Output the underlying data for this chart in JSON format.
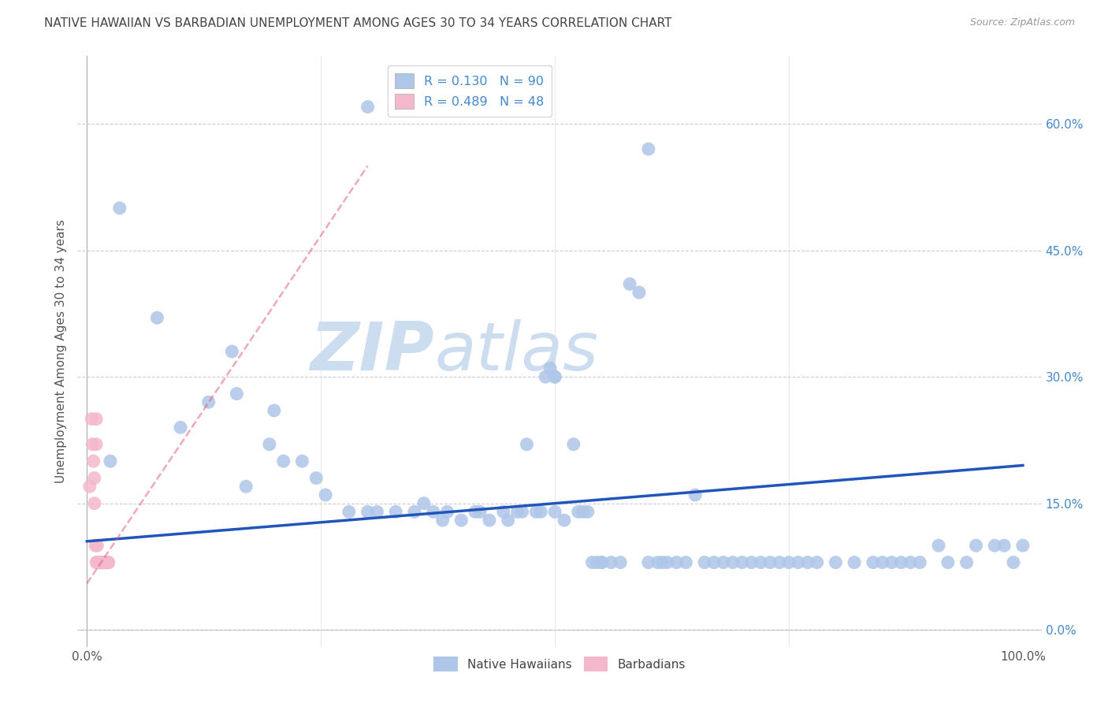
{
  "title": "NATIVE HAWAIIAN VS BARBADIAN UNEMPLOYMENT AMONG AGES 30 TO 34 YEARS CORRELATION CHART",
  "source": "Source: ZipAtlas.com",
  "ylabel": "Unemployment Among Ages 30 to 34 years",
  "ytick_vals": [
    0.0,
    0.15,
    0.3,
    0.45,
    0.6
  ],
  "ytick_labels": [
    "0.0%",
    "15.0%",
    "30.0%",
    "45.0%",
    "60.0%"
  ],
  "xtick_vals": [
    0.0,
    1.0
  ],
  "xtick_labels": [
    "0.0%",
    "100.0%"
  ],
  "xlim": [
    -0.01,
    1.02
  ],
  "ylim": [
    -0.02,
    0.68
  ],
  "r_hawaiian": 0.13,
  "n_hawaiian": 90,
  "r_barbadian": 0.489,
  "n_barbadian": 48,
  "hawaiian_color": "#aec6e8",
  "barbadian_color": "#f4b8cc",
  "trend_hawaiian_color": "#2255bb",
  "trend_barbadian_color": "#dd5577",
  "watermark_color": "#ccddf0",
  "background_color": "#ffffff",
  "grid_color": "#cccccc",
  "title_color": "#444444",
  "right_tick_color": "#4488cc",
  "hawaiian_x": [
    0.035,
    0.075,
    0.3,
    0.6,
    0.025,
    0.1,
    0.13,
    0.155,
    0.16,
    0.2,
    0.195,
    0.21,
    0.23,
    0.245,
    0.255,
    0.28,
    0.3,
    0.31,
    0.33,
    0.35,
    0.36,
    0.37,
    0.38,
    0.385,
    0.4,
    0.415,
    0.42,
    0.43,
    0.445,
    0.45,
    0.46,
    0.465,
    0.47,
    0.48,
    0.485,
    0.49,
    0.495,
    0.5,
    0.51,
    0.52,
    0.525,
    0.53,
    0.535,
    0.54,
    0.545,
    0.55,
    0.56,
    0.57,
    0.58,
    0.59,
    0.6,
    0.61,
    0.615,
    0.62,
    0.63,
    0.64,
    0.65,
    0.66,
    0.67,
    0.68,
    0.69,
    0.7,
    0.71,
    0.72,
    0.73,
    0.74,
    0.75,
    0.76,
    0.77,
    0.78,
    0.8,
    0.82,
    0.84,
    0.85,
    0.86,
    0.87,
    0.88,
    0.89,
    0.91,
    0.92,
    0.94,
    0.95,
    0.97,
    0.98,
    0.99,
    1.0,
    0.5,
    0.5,
    0.17,
    0.55
  ],
  "hawaiian_y": [
    0.5,
    0.37,
    0.62,
    0.57,
    0.2,
    0.24,
    0.27,
    0.33,
    0.28,
    0.26,
    0.22,
    0.2,
    0.2,
    0.18,
    0.16,
    0.14,
    0.14,
    0.14,
    0.14,
    0.14,
    0.15,
    0.14,
    0.13,
    0.14,
    0.13,
    0.14,
    0.14,
    0.13,
    0.14,
    0.13,
    0.14,
    0.14,
    0.22,
    0.14,
    0.14,
    0.3,
    0.31,
    0.14,
    0.13,
    0.22,
    0.14,
    0.14,
    0.14,
    0.08,
    0.08,
    0.08,
    0.08,
    0.08,
    0.41,
    0.4,
    0.08,
    0.08,
    0.08,
    0.08,
    0.08,
    0.08,
    0.16,
    0.08,
    0.08,
    0.08,
    0.08,
    0.08,
    0.08,
    0.08,
    0.08,
    0.08,
    0.08,
    0.08,
    0.08,
    0.08,
    0.08,
    0.08,
    0.08,
    0.08,
    0.08,
    0.08,
    0.08,
    0.08,
    0.1,
    0.08,
    0.08,
    0.1,
    0.1,
    0.1,
    0.08,
    0.1,
    0.3,
    0.3,
    0.17,
    0.08
  ],
  "barbadian_x": [
    0.003,
    0.005,
    0.006,
    0.007,
    0.008,
    0.008,
    0.009,
    0.01,
    0.01,
    0.01,
    0.011,
    0.011,
    0.012,
    0.012,
    0.013,
    0.013,
    0.013,
    0.014,
    0.014,
    0.014,
    0.015,
    0.015,
    0.015,
    0.015,
    0.016,
    0.016,
    0.016,
    0.017,
    0.017,
    0.017,
    0.018,
    0.018,
    0.018,
    0.019,
    0.019,
    0.019,
    0.02,
    0.02,
    0.02,
    0.02,
    0.021,
    0.021,
    0.021,
    0.022,
    0.022,
    0.022,
    0.023,
    0.023
  ],
  "barbadian_y": [
    0.17,
    0.25,
    0.22,
    0.2,
    0.18,
    0.15,
    0.1,
    0.25,
    0.22,
    0.08,
    0.1,
    0.08,
    0.08,
    0.08,
    0.08,
    0.08,
    0.08,
    0.08,
    0.08,
    0.08,
    0.08,
    0.08,
    0.08,
    0.08,
    0.08,
    0.08,
    0.08,
    0.08,
    0.08,
    0.08,
    0.08,
    0.08,
    0.08,
    0.08,
    0.08,
    0.08,
    0.08,
    0.08,
    0.08,
    0.08,
    0.08,
    0.08,
    0.08,
    0.08,
    0.08,
    0.08,
    0.08,
    0.08
  ],
  "hawaiian_trend_x": [
    0.0,
    1.0
  ],
  "hawaiian_trend_y": [
    0.105,
    0.195
  ],
  "barbadian_trend_x0": 0.0,
  "barbadian_trend_x1": 0.3,
  "barbadian_trend_y0": 0.055,
  "barbadian_trend_y1": 0.55
}
